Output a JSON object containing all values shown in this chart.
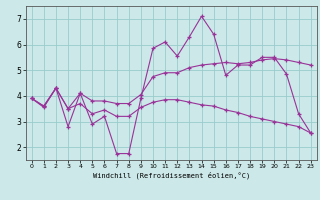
{
  "xlabel": "Windchill (Refroidissement éolien,°C)",
  "background_color": "#cce8e8",
  "grid_color": "#99cccc",
  "line_color": "#993399",
  "xlim": [
    -0.5,
    23.5
  ],
  "ylim": [
    1.5,
    7.5
  ],
  "yticks": [
    2,
    3,
    4,
    5,
    6,
    7
  ],
  "xticks": [
    0,
    1,
    2,
    3,
    4,
    5,
    6,
    7,
    8,
    9,
    10,
    11,
    12,
    13,
    14,
    15,
    16,
    17,
    18,
    19,
    20,
    21,
    22,
    23
  ],
  "series1_x": [
    0,
    1,
    2,
    3,
    4,
    5,
    6,
    7,
    8,
    9,
    10,
    11,
    12,
    13,
    14,
    15,
    16,
    17,
    18,
    19,
    20,
    21,
    22,
    23
  ],
  "series1_y": [
    3.9,
    3.6,
    4.3,
    2.8,
    4.1,
    2.9,
    3.2,
    1.75,
    1.75,
    3.9,
    5.85,
    6.1,
    5.55,
    6.3,
    7.1,
    6.4,
    4.8,
    5.2,
    5.2,
    5.5,
    5.5,
    4.85,
    3.3,
    2.55
  ],
  "series2_x": [
    0,
    1,
    2,
    3,
    4,
    5,
    6,
    7,
    8,
    9,
    10,
    11,
    12,
    13,
    14,
    15,
    16,
    17,
    18,
    19,
    20,
    21,
    22,
    23
  ],
  "series2_y": [
    3.9,
    3.6,
    4.3,
    3.5,
    4.1,
    3.8,
    3.8,
    3.7,
    3.7,
    4.05,
    4.75,
    4.9,
    4.9,
    5.1,
    5.2,
    5.25,
    5.3,
    5.25,
    5.3,
    5.4,
    5.45,
    5.4,
    5.3,
    5.2
  ],
  "series3_x": [
    0,
    1,
    2,
    3,
    4,
    5,
    6,
    7,
    8,
    9,
    10,
    11,
    12,
    13,
    14,
    15,
    16,
    17,
    18,
    19,
    20,
    21,
    22,
    23
  ],
  "series3_y": [
    3.9,
    3.55,
    4.3,
    3.5,
    3.7,
    3.3,
    3.45,
    3.2,
    3.2,
    3.55,
    3.75,
    3.85,
    3.85,
    3.75,
    3.65,
    3.6,
    3.45,
    3.35,
    3.2,
    3.1,
    3.0,
    2.9,
    2.8,
    2.55
  ]
}
